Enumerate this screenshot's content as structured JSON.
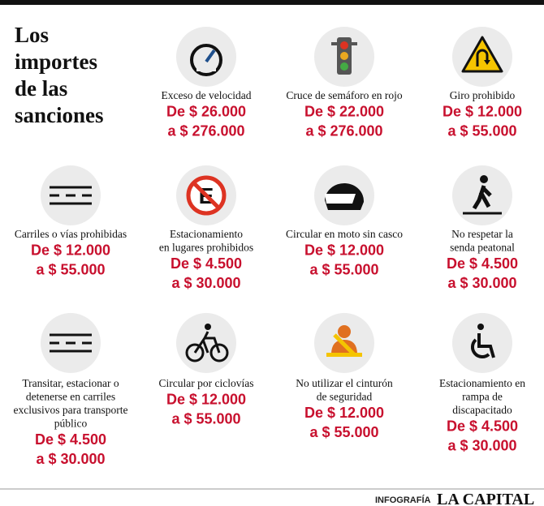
{
  "title_lines": [
    "Los",
    "importes",
    "de las",
    "sanciones"
  ],
  "items": [
    {
      "label_lines": [
        "Exceso de velocidad"
      ],
      "from": "De $ 26.000",
      "to": "a $ 276.000"
    },
    {
      "label_lines": [
        "Cruce de semáforo en rojo"
      ],
      "from": "De $ 22.000",
      "to": "a $ 276.000"
    },
    {
      "label_lines": [
        "Giro prohibido"
      ],
      "from": "De $ 12.000",
      "to": "a $ 55.000"
    },
    {
      "label_lines": [
        "Carriles o vías prohibidas"
      ],
      "from": "De $ 12.000",
      "to": "a $ 55.000"
    },
    {
      "label_lines": [
        "Estacionamiento",
        "en lugares prohibidos"
      ],
      "from": "De $ 4.500",
      "to": "a $ 30.000"
    },
    {
      "label_lines": [
        "Circular en moto sin casco"
      ],
      "from": "De $ 12.000",
      "to": "a $ 55.000"
    },
    {
      "label_lines": [
        "No respetar la",
        "senda peatonal"
      ],
      "from": "De $ 4.500",
      "to": "a $ 30.000"
    },
    {
      "label_lines": [
        "Transitar, estacionar o",
        "detenerse en carriles",
        "exclusivos para transporte",
        "público"
      ],
      "from": "De $ 4.500",
      "to": "a $ 30.000"
    },
    {
      "label_lines": [
        "Circular por ciclovías"
      ],
      "from": "De $ 12.000",
      "to": "a $ 55.000"
    },
    {
      "label_lines": [
        "No utilizar el cinturón",
        "de seguridad"
      ],
      "from": "De $ 12.000",
      "to": "a $ 55.000"
    },
    {
      "label_lines": [
        "Estacionamiento en",
        "rampa de",
        "discapacitado"
      ],
      "from": "De $ 4.500",
      "to": "a $ 30.000"
    }
  ],
  "footer": {
    "credit": "INFOGRAFÍA",
    "brand": "LA CAPITAL"
  }
}
